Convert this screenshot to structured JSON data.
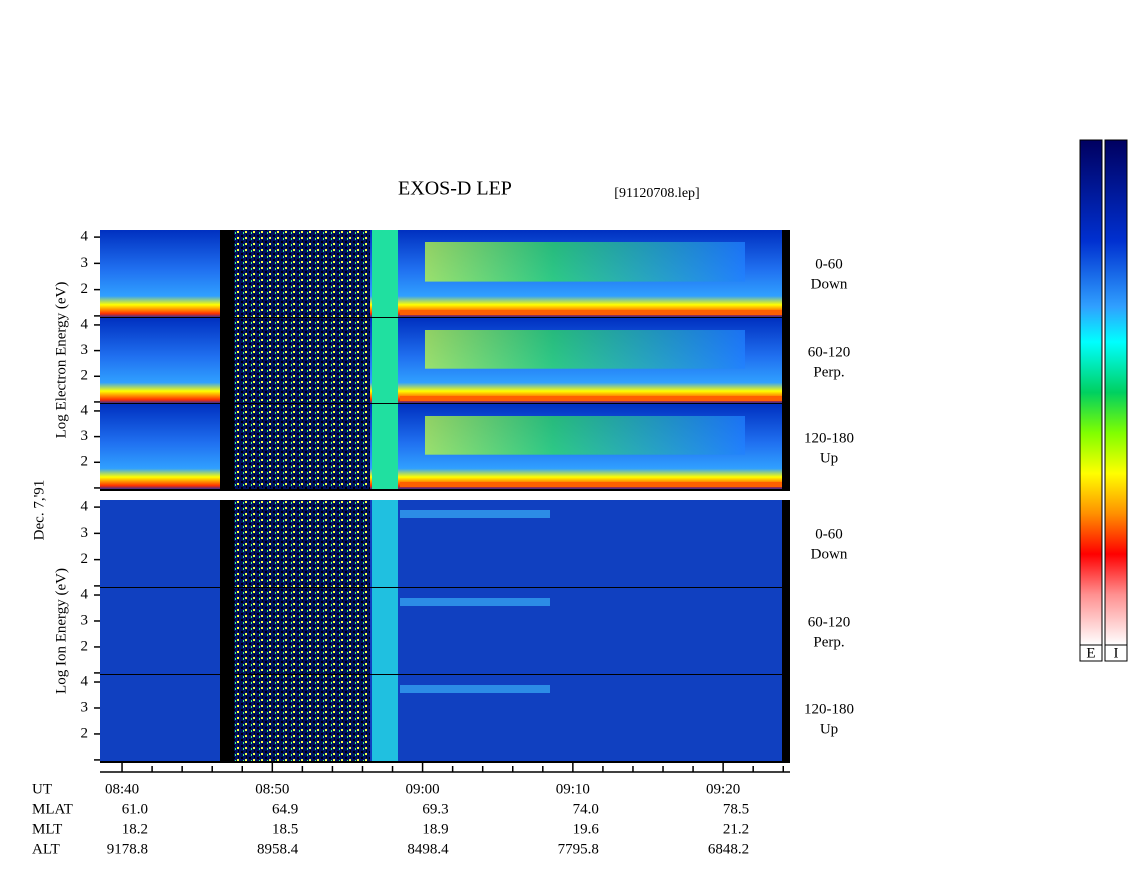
{
  "chart_data": {
    "type": "spectrogram",
    "title": "EXOS-D LEP",
    "subtitle": "[91120708.lep]",
    "date_label": "Dec. 7,'91",
    "groups": [
      {
        "label": "Log Electron Energy (eV)",
        "panels": [
          {
            "angle": "0-60",
            "direction": "Down"
          },
          {
            "angle": "60-120",
            "direction": "Perp."
          },
          {
            "angle": "120-180",
            "direction": "Up"
          }
        ]
      },
      {
        "label": "Log Ion Energy (eV)",
        "panels": [
          {
            "angle": "0-60",
            "direction": "Down"
          },
          {
            "angle": "60-120",
            "direction": "Perp."
          },
          {
            "angle": "120-180",
            "direction": "Up"
          }
        ]
      }
    ],
    "ylim": [
      0.92,
      4.27
    ],
    "yticks": [
      {
        "value": 1,
        "label": null
      },
      2,
      3,
      4
    ],
    "xlim": [
      "08:38:32",
      "09:24:27"
    ],
    "xticks": [
      "08:40",
      "08:50",
      "09:00",
      "09:10",
      "09:20"
    ],
    "minor_xticks": [
      "08:42",
      "08:44",
      "08:46",
      "08:48",
      "08:52",
      "08:54",
      "08:56",
      "08:58",
      "09:02",
      "09:04",
      "09:06",
      "09:08",
      "09:12",
      "09:14",
      "09:16",
      "09:18",
      "09:22",
      "09:24"
    ],
    "ephemeris": [
      {
        "name": "UT"
      },
      {
        "name": "MLAT",
        "values": [
          "61.0",
          "64.9",
          "69.3",
          "74.0",
          "78.5"
        ]
      },
      {
        "name": "MLT",
        "values": [
          "18.2",
          "18.5",
          "18.9",
          "19.6",
          "21.2"
        ]
      },
      {
        "name": "ALT",
        "values": [
          "9178.8",
          "8958.4",
          "8498.4",
          "7795.8",
          "6848.2"
        ]
      }
    ],
    "colorbars": [
      "E",
      "I"
    ]
  }
}
